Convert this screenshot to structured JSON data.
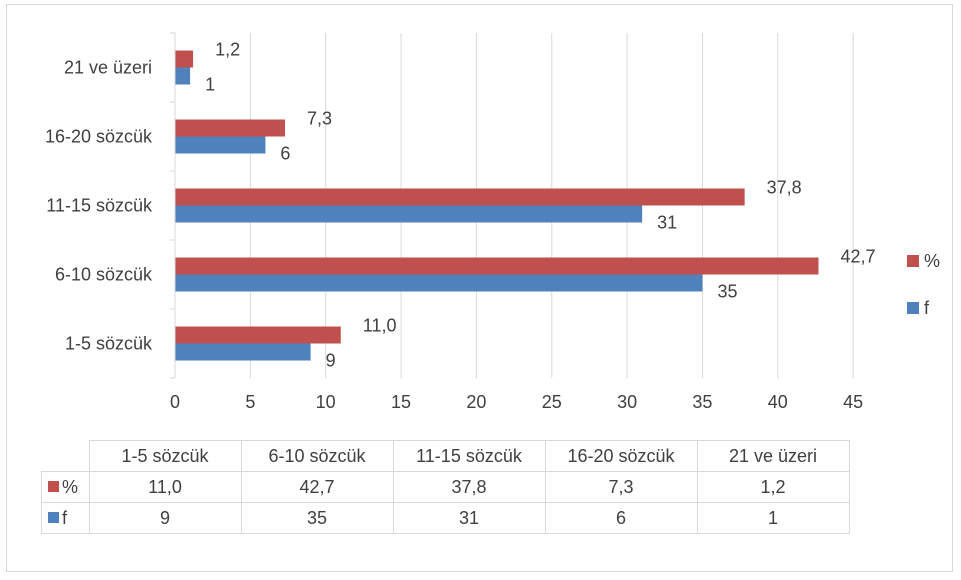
{
  "chart_data": {
    "type": "bar",
    "orientation": "horizontal",
    "categories": [
      "1-5 sözcük",
      "6-10 sözcük",
      "11-15 sözcük",
      "16-20 sözcük",
      "21 ve üzeri"
    ],
    "series": [
      {
        "name": "%",
        "color": "#c0504d",
        "values": [
          11.0,
          42.7,
          37.8,
          7.3,
          1.2
        ],
        "labels": [
          "11,0",
          "42,7",
          "37,8",
          "7,3",
          "1,2"
        ]
      },
      {
        "name": "f",
        "color": "#4f81bd",
        "values": [
          9,
          35,
          31,
          6,
          1
        ],
        "labels": [
          "9",
          "35",
          "31",
          "6",
          "1"
        ]
      }
    ],
    "x_ticks": [
      "0",
      "5",
      "10",
      "15",
      "20",
      "25",
      "30",
      "35",
      "40",
      "45"
    ],
    "xlim": [
      0,
      45
    ],
    "grid": "vertical",
    "legend_position": "right",
    "data_table": true
  }
}
